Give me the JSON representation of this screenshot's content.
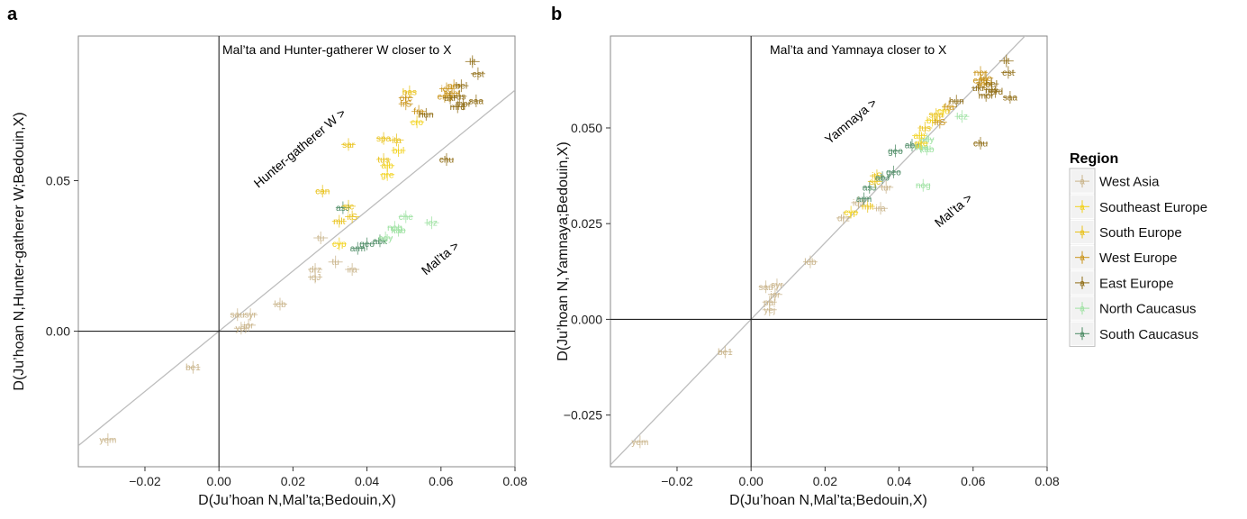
{
  "colors": {
    "West Asia": "#c9b48a",
    "Southeast Europe": "#f2d21c",
    "South Europe": "#e9c21a",
    "West Europe": "#c99318",
    "East Europe": "#8f6c14",
    "North Caucasus": "#9fe2a3",
    "South Caucasus": "#4b8a63"
  },
  "legend": {
    "title": "Region",
    "items": [
      "West Asia",
      "Southeast Europe",
      "South Europe",
      "West Europe",
      "East Europe",
      "North Caucasus",
      "South Caucasus"
    ]
  },
  "chart_data": [
    {
      "panel": "a",
      "type": "scatter",
      "xlabel": "D(Ju’hoan N,Mal’ta;Bedouin,X)",
      "ylabel": "D(Ju’hoan N,Hunter-gatherer W;Bedouin,X)",
      "xlim": [
        -0.038,
        0.08
      ],
      "ylim": [
        -0.045,
        0.098
      ],
      "xticks": [
        -0.02,
        0.0,
        0.02,
        0.04,
        0.06,
        0.08
      ],
      "xtick_labels": [
        "−0.02",
        "0.00",
        "0.02",
        "0.04",
        "0.06",
        "0.08"
      ],
      "yticks": [
        0.0,
        0.05
      ],
      "ytick_labels": [
        "0.00",
        "0.05"
      ],
      "grid": false,
      "diagonal": true,
      "annotations": {
        "top": "Mal’ta and Hunter-gatherer W closer to X",
        "upper_arrow": "Hunter-gatherer W >",
        "lower_arrow": "Mal’ta >"
      },
      "points": [
        {
          "label": "yem",
          "x": -0.03,
          "y": -0.036,
          "region": "West Asia"
        },
        {
          "label": "be1",
          "x": -0.007,
          "y": -0.012,
          "region": "West Asia"
        },
        {
          "label": "sau",
          "x": 0.005,
          "y": 0.0055,
          "region": "West Asia"
        },
        {
          "label": "syr",
          "x": 0.0085,
          "y": 0.0055,
          "region": "West Asia"
        },
        {
          "label": "yej",
          "x": 0.006,
          "y": 0.001,
          "region": "West Asia"
        },
        {
          "label": "jor",
          "x": 0.008,
          "y": 0.002,
          "region": "West Asia"
        },
        {
          "label": "leb",
          "x": 0.0165,
          "y": 0.009,
          "region": "West Asia"
        },
        {
          "label": "tu",
          "x": 0.0275,
          "y": 0.031,
          "region": "West Asia"
        },
        {
          "label": "tu",
          "x": 0.0315,
          "y": 0.023,
          "region": "West Asia"
        },
        {
          "label": "drz",
          "x": 0.026,
          "y": 0.0205,
          "region": "West Asia"
        },
        {
          "label": "iqJ",
          "x": 0.026,
          "y": 0.018,
          "region": "West Asia"
        },
        {
          "label": "ira",
          "x": 0.036,
          "y": 0.0205,
          "region": "West Asia"
        },
        {
          "label": "cyp",
          "x": 0.0325,
          "y": 0.029,
          "region": "Southeast Europe"
        },
        {
          "label": "arm",
          "x": 0.0375,
          "y": 0.0275,
          "region": "South Caucasus"
        },
        {
          "label": "geo",
          "x": 0.04,
          "y": 0.029,
          "region": "South Caucasus"
        },
        {
          "label": "abk",
          "x": 0.0435,
          "y": 0.03,
          "region": "South Caucasus"
        },
        {
          "label": "ady",
          "x": 0.045,
          "y": 0.031,
          "region": "North Caucasus"
        },
        {
          "label": "nog",
          "x": 0.0475,
          "y": 0.0345,
          "region": "North Caucasus"
        },
        {
          "label": "kab",
          "x": 0.0485,
          "y": 0.0335,
          "region": "North Caucasus"
        },
        {
          "label": "che",
          "x": 0.0505,
          "y": 0.038,
          "region": "North Caucasus"
        },
        {
          "label": "lez",
          "x": 0.0575,
          "y": 0.036,
          "region": "North Caucasus"
        },
        {
          "label": "asJ",
          "x": 0.0335,
          "y": 0.041,
          "region": "South Caucasus"
        },
        {
          "label": "sic",
          "x": 0.035,
          "y": 0.0415,
          "region": "South Europe"
        },
        {
          "label": "itS",
          "x": 0.036,
          "y": 0.038,
          "region": "South Europe"
        },
        {
          "label": "mlt",
          "x": 0.0325,
          "y": 0.0365,
          "region": "South Europe"
        },
        {
          "label": "can",
          "x": 0.028,
          "y": 0.0465,
          "region": "South Europe"
        },
        {
          "label": "gre",
          "x": 0.0455,
          "y": 0.052,
          "region": "Southeast Europe"
        },
        {
          "label": "alb",
          "x": 0.0455,
          "y": 0.055,
          "region": "Southeast Europe"
        },
        {
          "label": "tus",
          "x": 0.0445,
          "y": 0.057,
          "region": "South Europe"
        },
        {
          "label": "bul",
          "x": 0.0485,
          "y": 0.06,
          "region": "Southeast Europe"
        },
        {
          "label": "spa",
          "x": 0.0445,
          "y": 0.064,
          "region": "South Europe"
        },
        {
          "label": "ita",
          "x": 0.048,
          "y": 0.0635,
          "region": "South Europe"
        },
        {
          "label": "sar",
          "x": 0.035,
          "y": 0.062,
          "region": "South Europe"
        },
        {
          "label": "chu",
          "x": 0.0615,
          "y": 0.057,
          "region": "East Europe"
        },
        {
          "label": "cro",
          "x": 0.0535,
          "y": 0.0695,
          "region": "Southeast Europe"
        },
        {
          "label": "fra",
          "x": 0.054,
          "y": 0.073,
          "region": "West Europe"
        },
        {
          "label": "hun",
          "x": 0.056,
          "y": 0.072,
          "region": "East Europe"
        },
        {
          "label": "frS",
          "x": 0.0505,
          "y": 0.0755,
          "region": "West Europe"
        },
        {
          "label": "bas",
          "x": 0.0515,
          "y": 0.0795,
          "region": "South Europe"
        },
        {
          "label": "orc",
          "x": 0.0505,
          "y": 0.0775,
          "region": "West Europe"
        },
        {
          "label": "eng",
          "x": 0.061,
          "y": 0.078,
          "region": "West Europe"
        },
        {
          "label": "ice",
          "x": 0.0615,
          "y": 0.0805,
          "region": "West Europe"
        },
        {
          "label": "nor",
          "x": 0.0635,
          "y": 0.0815,
          "region": "West Europe"
        },
        {
          "label": "scot",
          "x": 0.063,
          "y": 0.079,
          "region": "West Europe"
        },
        {
          "label": "bel",
          "x": 0.0655,
          "y": 0.0815,
          "region": "East Europe"
        },
        {
          "label": "ukr",
          "x": 0.0625,
          "y": 0.0775,
          "region": "East Europe"
        },
        {
          "label": "rus",
          "x": 0.065,
          "y": 0.078,
          "region": "East Europe"
        },
        {
          "label": "saa",
          "x": 0.0695,
          "y": 0.0765,
          "region": "East Europe"
        },
        {
          "label": "mor",
          "x": 0.066,
          "y": 0.0755,
          "region": "East Europe"
        },
        {
          "label": "mrd",
          "x": 0.0645,
          "y": 0.0745,
          "region": "East Europe"
        },
        {
          "label": "est",
          "x": 0.07,
          "y": 0.0855,
          "region": "East Europe"
        },
        {
          "label": "lit",
          "x": 0.0685,
          "y": 0.0895,
          "region": "East Europe"
        }
      ]
    },
    {
      "panel": "b",
      "type": "scatter",
      "xlabel": "D(Ju’hoan N,Mal’ta;Bedouin,X)",
      "ylabel": "D(Ju’hoan N,Yamnaya;Bedouin,X)",
      "xlim": [
        -0.038,
        0.08
      ],
      "ylim": [
        -0.0385,
        0.074
      ],
      "xticks": [
        -0.02,
        0.0,
        0.02,
        0.04,
        0.06,
        0.08
      ],
      "xtick_labels": [
        "−0.02",
        "0.00",
        "0.02",
        "0.04",
        "0.06",
        "0.08"
      ],
      "yticks": [
        -0.025,
        0.0,
        0.025,
        0.05
      ],
      "ytick_labels": [
        "−0.025",
        "0.000",
        "0.025",
        "0.050"
      ],
      "grid": false,
      "diagonal": true,
      "annotations": {
        "top": "Mal’ta and Yamnaya closer to X",
        "upper_arrow": "Yamnaya >",
        "lower_arrow": "Mal’ta >"
      },
      "points": [
        {
          "label": "yem",
          "x": -0.03,
          "y": -0.032,
          "region": "West Asia"
        },
        {
          "label": "be1",
          "x": -0.007,
          "y": -0.0085,
          "region": "West Asia"
        },
        {
          "label": "sau",
          "x": 0.004,
          "y": 0.0085,
          "region": "West Asia"
        },
        {
          "label": "syr",
          "x": 0.007,
          "y": 0.009,
          "region": "West Asia"
        },
        {
          "label": "jor",
          "x": 0.0065,
          "y": 0.0065,
          "region": "West Asia"
        },
        {
          "label": "pal",
          "x": 0.005,
          "y": 0.0045,
          "region": "West Asia"
        },
        {
          "label": "yej",
          "x": 0.005,
          "y": 0.0025,
          "region": "West Asia"
        },
        {
          "label": "leb",
          "x": 0.016,
          "y": 0.015,
          "region": "West Asia"
        },
        {
          "label": "drz",
          "x": 0.025,
          "y": 0.0265,
          "region": "West Asia"
        },
        {
          "label": "cyp",
          "x": 0.027,
          "y": 0.028,
          "region": "Southeast Europe"
        },
        {
          "label": "ira",
          "x": 0.035,
          "y": 0.029,
          "region": "West Asia"
        },
        {
          "label": "iqJ",
          "x": 0.029,
          "y": 0.0305,
          "region": "West Asia"
        },
        {
          "label": "mlt",
          "x": 0.0315,
          "y": 0.0295,
          "region": "South Europe"
        },
        {
          "label": "arm",
          "x": 0.0305,
          "y": 0.0315,
          "region": "South Caucasus"
        },
        {
          "label": "tur",
          "x": 0.0365,
          "y": 0.0345,
          "region": "West Asia"
        },
        {
          "label": "asJ",
          "x": 0.032,
          "y": 0.0345,
          "region": "South Caucasus"
        },
        {
          "label": "sic",
          "x": 0.0335,
          "y": 0.036,
          "region": "South Europe"
        },
        {
          "label": "itS",
          "x": 0.034,
          "y": 0.0375,
          "region": "South Europe"
        },
        {
          "label": "abJ",
          "x": 0.0355,
          "y": 0.037,
          "region": "South Caucasus"
        },
        {
          "label": "geo",
          "x": 0.0385,
          "y": 0.0385,
          "region": "South Caucasus"
        },
        {
          "label": "nog",
          "x": 0.0465,
          "y": 0.035,
          "region": "North Caucasus"
        },
        {
          "label": "geo",
          "x": 0.039,
          "y": 0.044,
          "region": "South Caucasus"
        },
        {
          "label": "abk",
          "x": 0.0435,
          "y": 0.0455,
          "region": "South Caucasus"
        },
        {
          "label": "che",
          "x": 0.046,
          "y": 0.045,
          "region": "North Caucasus"
        },
        {
          "label": "kab",
          "x": 0.0475,
          "y": 0.0445,
          "region": "North Caucasus"
        },
        {
          "label": "ady",
          "x": 0.0475,
          "y": 0.047,
          "region": "North Caucasus"
        },
        {
          "label": "alb",
          "x": 0.0455,
          "y": 0.048,
          "region": "Southeast Europe"
        },
        {
          "label": "gre",
          "x": 0.046,
          "y": 0.046,
          "region": "Southeast Europe"
        },
        {
          "label": "tus",
          "x": 0.047,
          "y": 0.05,
          "region": "South Europe"
        },
        {
          "label": "bul",
          "x": 0.049,
          "y": 0.052,
          "region": "Southeast Europe"
        },
        {
          "label": "lez",
          "x": 0.057,
          "y": 0.053,
          "region": "North Caucasus"
        },
        {
          "label": "frS",
          "x": 0.051,
          "y": 0.0515,
          "region": "West Europe"
        },
        {
          "label": "spa",
          "x": 0.05,
          "y": 0.0535,
          "region": "South Europe"
        },
        {
          "label": "cro",
          "x": 0.052,
          "y": 0.0545,
          "region": "Southeast Europe"
        },
        {
          "label": "fra",
          "x": 0.0535,
          "y": 0.0555,
          "region": "West Europe"
        },
        {
          "label": "hun",
          "x": 0.0555,
          "y": 0.057,
          "region": "East Europe"
        },
        {
          "label": "chu",
          "x": 0.062,
          "y": 0.046,
          "region": "East Europe"
        },
        {
          "label": "nor",
          "x": 0.062,
          "y": 0.0645,
          "region": "West Europe"
        },
        {
          "label": "lit",
          "x": 0.069,
          "y": 0.0675,
          "region": "East Europe"
        },
        {
          "label": "est",
          "x": 0.0695,
          "y": 0.0645,
          "region": "East Europe"
        },
        {
          "label": "eng",
          "x": 0.062,
          "y": 0.0625,
          "region": "West Europe"
        },
        {
          "label": "ice",
          "x": 0.0635,
          "y": 0.063,
          "region": "West Europe"
        },
        {
          "label": "scot",
          "x": 0.063,
          "y": 0.0615,
          "region": "West Europe"
        },
        {
          "label": "bel",
          "x": 0.065,
          "y": 0.0615,
          "region": "East Europe"
        },
        {
          "label": "ukr",
          "x": 0.0615,
          "y": 0.0605,
          "region": "East Europe"
        },
        {
          "label": "rus",
          "x": 0.065,
          "y": 0.06,
          "region": "East Europe"
        },
        {
          "label": "mor",
          "x": 0.0635,
          "y": 0.0585,
          "region": "East Europe"
        },
        {
          "label": "mrd",
          "x": 0.066,
          "y": 0.0595,
          "region": "East Europe"
        },
        {
          "label": "saa",
          "x": 0.07,
          "y": 0.058,
          "region": "East Europe"
        }
      ]
    }
  ]
}
